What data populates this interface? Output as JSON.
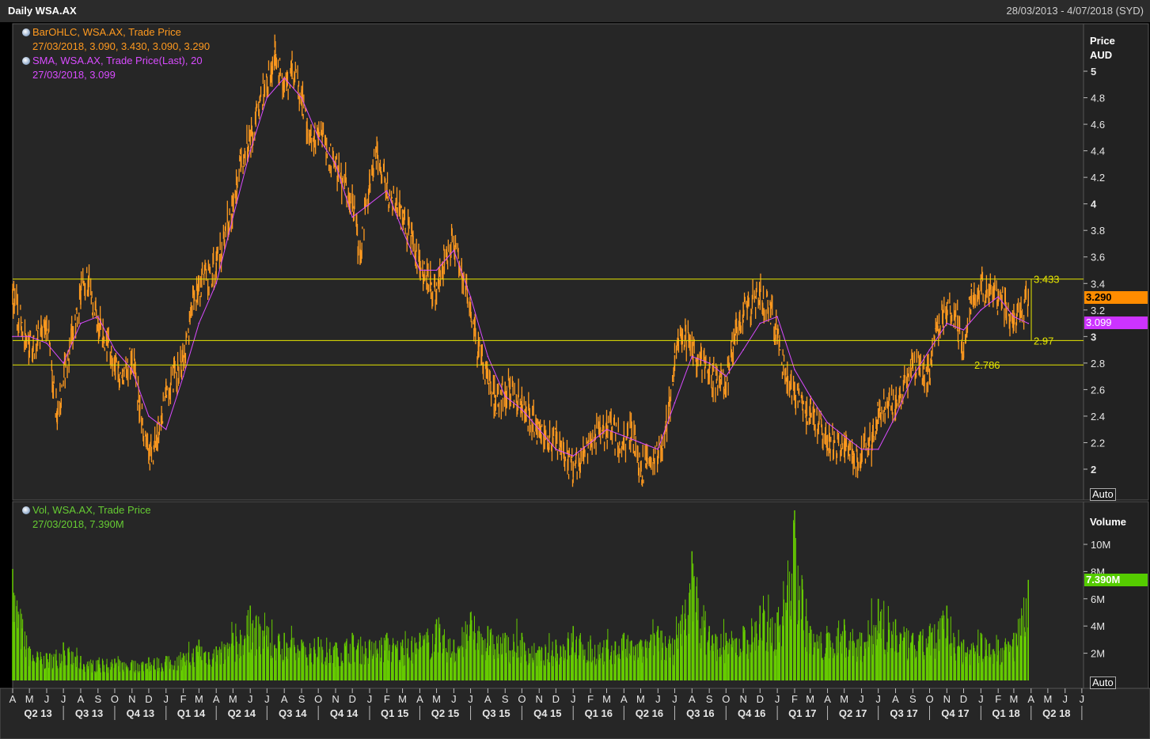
{
  "header": {
    "title": "Daily WSA.AX",
    "date_range": "28/03/2013 - 4/07/2018 (SYD)"
  },
  "colors": {
    "price": "#ff9a1f",
    "sma": "#d84bff",
    "volume": "#66cc00",
    "level_line": "#e6e600",
    "grid": "#3a3a3a",
    "background": "#000000"
  },
  "price_panel": {
    "legend": [
      {
        "line1": "BarOHLC, WSA.AX, Trade Price",
        "line2": "27/03/2018, 3.090, 3.430, 3.090, 3.290",
        "color": "orange"
      },
      {
        "line1": "SMA, WSA.AX, Trade Price(Last),  20",
        "line2": "27/03/2018, 3.099",
        "color": "purple"
      }
    ],
    "axis_title_1": "Price",
    "axis_title_2": "AUD",
    "auto_label": "Auto",
    "last_price_badge": "3.290",
    "sma_badge": "3.099"
  },
  "volume_panel": {
    "legend": {
      "line1": "Vol, WSA.AX, Trade Price",
      "line2": "27/03/2018, 7.390M"
    },
    "axis_title": "Volume",
    "auto_label": "Auto",
    "last_volume_badge": "7.390M"
  },
  "chart_data": [
    {
      "type": "line",
      "title": "Daily WSA.AX",
      "ylabel": "Price AUD",
      "y_axis_side": "right",
      "ylim": [
        1.85,
        5.25
      ],
      "y_ticks": [
        "2",
        "2.2",
        "2.4",
        "2.6",
        "2.8",
        "3",
        "3.2",
        "3.4",
        "3.6",
        "3.8",
        "4",
        "4.2",
        "4.4",
        "4.6",
        "4.8",
        "5"
      ],
      "grid": false,
      "x_range": [
        "2013-04-01",
        "2018-07-04"
      ],
      "x_month_ticks": [
        "A",
        "M",
        "J",
        "J",
        "A",
        "S",
        "O",
        "N",
        "D",
        "J",
        "F",
        "M",
        "A",
        "M",
        "J",
        "J",
        "A",
        "S",
        "O",
        "N",
        "D",
        "J",
        "F",
        "M",
        "A",
        "M",
        "J",
        "J",
        "A",
        "S",
        "O",
        "N",
        "D",
        "J",
        "F",
        "M",
        "A",
        "M",
        "J",
        "J",
        "A",
        "S",
        "O",
        "N",
        "D",
        "J",
        "F",
        "M",
        "A",
        "M",
        "J",
        "J",
        "A",
        "S",
        "O",
        "N",
        "D",
        "J",
        "F",
        "M",
        "A",
        "M",
        "J",
        "J"
      ],
      "x_quarter_ticks": [
        "Q2 13",
        "Q3 13",
        "Q4 13",
        "Q1 14",
        "Q2 14",
        "Q3 14",
        "Q4 14",
        "Q1 15",
        "Q2 15",
        "Q3 15",
        "Q4 15",
        "Q1 16",
        "Q2 16",
        "Q3 16",
        "Q4 16",
        "Q1 17",
        "Q2 17",
        "Q3 17",
        "Q4 17",
        "Q1 18",
        "Q2 18"
      ],
      "series": [
        {
          "name": "BarOHLC, WSA.AX, Trade Price",
          "style": "ohlc-bars",
          "x": [
            "2013-04-01",
            "2013-05-01",
            "2013-06-01",
            "2013-06-20",
            "2013-07-15",
            "2013-08-01",
            "2013-08-15",
            "2013-09-01",
            "2013-10-01",
            "2013-10-15",
            "2013-11-01",
            "2013-11-15",
            "2013-12-01",
            "2013-12-15",
            "2014-01-01",
            "2014-02-01",
            "2014-02-15",
            "2014-03-01",
            "2014-04-01",
            "2014-05-01",
            "2014-05-15",
            "2014-06-01",
            "2014-07-01",
            "2014-07-15",
            "2014-08-01",
            "2014-08-15",
            "2014-09-01",
            "2014-09-15",
            "2014-10-01",
            "2014-11-01",
            "2014-12-01",
            "2014-12-15",
            "2015-01-01",
            "2015-01-15",
            "2015-02-01",
            "2015-03-01",
            "2015-03-20",
            "2015-04-01",
            "2015-04-20",
            "2015-05-01",
            "2015-05-15",
            "2015-06-01",
            "2015-06-15",
            "2015-07-01",
            "2015-07-15",
            "2015-08-01",
            "2015-08-15",
            "2015-09-01",
            "2015-10-01",
            "2015-10-15",
            "2015-11-01",
            "2015-12-01",
            "2016-01-01",
            "2016-01-15",
            "2016-02-01",
            "2016-03-01",
            "2016-04-01",
            "2016-04-15",
            "2016-05-01",
            "2016-06-01",
            "2016-06-20",
            "2016-07-01",
            "2016-07-15",
            "2016-08-01",
            "2016-09-01",
            "2016-10-01",
            "2016-10-15",
            "2016-11-01",
            "2016-12-01",
            "2016-12-20",
            "2017-01-01",
            "2017-01-15",
            "2017-02-01",
            "2017-03-01",
            "2017-04-01",
            "2017-05-01",
            "2017-05-15",
            "2017-06-01",
            "2017-06-20",
            "2017-07-01",
            "2017-08-01",
            "2017-09-01",
            "2017-10-01",
            "2017-10-15",
            "2017-11-01",
            "2017-11-20",
            "2017-12-01",
            "2017-12-15",
            "2018-01-01",
            "2018-01-15",
            "2018-02-01",
            "2018-02-15",
            "2018-03-01",
            "2018-03-27"
          ],
          "values": [
            3.3,
            2.9,
            3.1,
            2.4,
            3.0,
            3.3,
            3.4,
            3.1,
            2.8,
            2.7,
            2.85,
            2.5,
            2.1,
            2.2,
            2.6,
            2.8,
            3.2,
            3.4,
            3.5,
            4.0,
            4.3,
            4.5,
            4.9,
            5.1,
            4.9,
            5.0,
            4.8,
            4.5,
            4.5,
            4.3,
            4.0,
            3.6,
            4.2,
            4.4,
            4.1,
            3.9,
            3.7,
            3.5,
            3.4,
            3.3,
            3.6,
            3.7,
            3.5,
            3.2,
            2.9,
            2.7,
            2.5,
            2.6,
            2.5,
            2.4,
            2.3,
            2.2,
            2.0,
            2.1,
            2.2,
            2.3,
            2.2,
            2.3,
            2.0,
            2.1,
            2.4,
            2.8,
            3.0,
            2.9,
            2.7,
            2.6,
            3.0,
            3.2,
            3.3,
            3.2,
            3.0,
            2.7,
            2.6,
            2.4,
            2.2,
            2.15,
            2.1,
            2.1,
            2.2,
            2.4,
            2.5,
            2.8,
            2.7,
            3.1,
            3.2,
            3.1,
            2.9,
            3.3,
            3.4,
            3.3,
            3.3,
            3.2,
            3.1,
            3.29
          ]
        },
        {
          "name": "SMA, WSA.AX, Trade Price(Last),  20",
          "style": "line",
          "x": [
            "2013-04-01",
            "2013-05-01",
            "2013-06-01",
            "2013-07-01",
            "2013-08-01",
            "2013-09-01",
            "2013-10-01",
            "2013-11-01",
            "2013-12-01",
            "2014-01-01",
            "2014-02-01",
            "2014-03-01",
            "2014-04-01",
            "2014-05-01",
            "2014-06-01",
            "2014-07-01",
            "2014-08-01",
            "2014-09-01",
            "2014-10-01",
            "2014-11-01",
            "2014-12-01",
            "2015-01-01",
            "2015-02-01",
            "2015-03-01",
            "2015-04-01",
            "2015-05-01",
            "2015-06-01",
            "2015-07-01",
            "2015-08-01",
            "2015-09-01",
            "2015-10-01",
            "2015-11-01",
            "2015-12-01",
            "2016-01-01",
            "2016-02-01",
            "2016-03-01",
            "2016-04-01",
            "2016-05-01",
            "2016-06-01",
            "2016-07-01",
            "2016-08-01",
            "2016-09-01",
            "2016-10-01",
            "2016-11-01",
            "2016-12-01",
            "2017-01-01",
            "2017-02-01",
            "2017-03-01",
            "2017-04-01",
            "2017-05-01",
            "2017-06-01",
            "2017-07-01",
            "2017-08-01",
            "2017-09-01",
            "2017-10-01",
            "2017-11-01",
            "2017-12-01",
            "2018-01-01",
            "2018-02-01",
            "2018-03-01",
            "2018-03-27"
          ],
          "values": [
            3.0,
            3.0,
            2.95,
            2.8,
            3.1,
            3.15,
            2.9,
            2.75,
            2.4,
            2.3,
            2.7,
            3.1,
            3.4,
            3.9,
            4.4,
            4.8,
            4.95,
            4.8,
            4.5,
            4.3,
            3.9,
            4.0,
            4.1,
            3.8,
            3.5,
            3.5,
            3.65,
            3.3,
            2.85,
            2.55,
            2.45,
            2.3,
            2.15,
            2.1,
            2.2,
            2.3,
            2.25,
            2.2,
            2.15,
            2.5,
            2.85,
            2.8,
            2.7,
            2.9,
            3.1,
            3.15,
            2.75,
            2.55,
            2.35,
            2.25,
            2.15,
            2.15,
            2.4,
            2.7,
            2.9,
            3.1,
            3.05,
            3.2,
            3.3,
            3.15,
            3.099
          ]
        }
      ],
      "horizontal_levels": [
        3.433,
        2.97,
        2.786
      ],
      "level_labels": [
        "3.433",
        "2.97",
        "2.786"
      ],
      "last_values": {
        "close": 3.29,
        "sma": 3.099
      }
    },
    {
      "type": "bar",
      "title": "Vol, WSA.AX, Trade Price",
      "ylabel": "Volume",
      "y_axis_side": "right",
      "ylim": [
        0,
        12.8
      ],
      "y_unit": "M",
      "y_ticks": [
        "2M",
        "4M",
        "6M",
        "8M",
        "10M"
      ],
      "x_range": [
        "2013-04-01",
        "2018-07-04"
      ],
      "series": [
        {
          "name": "Vol, WSA.AX, Trade Price",
          "x": [
            "2013-04-01",
            "2013-05-01",
            "2013-06-01",
            "2013-07-01",
            "2013-08-01",
            "2013-09-01",
            "2013-10-01",
            "2013-11-01",
            "2013-12-01",
            "2014-01-01",
            "2014-02-01",
            "2014-03-01",
            "2014-04-01",
            "2014-05-01",
            "2014-06-01",
            "2014-07-01",
            "2014-08-01",
            "2014-09-01",
            "2014-10-01",
            "2014-11-01",
            "2014-12-01",
            "2015-01-01",
            "2015-02-01",
            "2015-03-01",
            "2015-04-01",
            "2015-05-01",
            "2015-06-01",
            "2015-07-01",
            "2015-08-01",
            "2015-09-01",
            "2015-10-01",
            "2015-11-01",
            "2015-12-01",
            "2016-01-01",
            "2016-02-01",
            "2016-03-01",
            "2016-04-01",
            "2016-05-01",
            "2016-06-01",
            "2016-07-01",
            "2016-08-01",
            "2016-09-01",
            "2016-10-01",
            "2016-11-01",
            "2016-12-01",
            "2017-01-01",
            "2017-02-01",
            "2017-03-01",
            "2017-04-01",
            "2017-05-01",
            "2017-06-01",
            "2017-07-01",
            "2017-08-01",
            "2017-09-01",
            "2017-10-01",
            "2017-11-01",
            "2017-12-01",
            "2018-01-01",
            "2018-02-01",
            "2018-03-01",
            "2018-03-27"
          ],
          "values": [
            8.2,
            2.5,
            2.0,
            2.8,
            1.8,
            1.5,
            1.6,
            1.5,
            1.7,
            1.8,
            2.0,
            3.0,
            2.5,
            3.5,
            5.5,
            4.0,
            3.5,
            3.0,
            3.2,
            2.8,
            3.5,
            3.0,
            3.5,
            3.0,
            3.5,
            4.5,
            3.0,
            5.0,
            4.0,
            3.5,
            3.5,
            2.5,
            3.0,
            4.0,
            3.0,
            3.0,
            3.5,
            3.0,
            4.0,
            3.0,
            9.5,
            4.0,
            3.5,
            4.0,
            5.5,
            5.0,
            12.5,
            4.0,
            3.5,
            4.5,
            3.5,
            6.0,
            4.5,
            3.5,
            4.0,
            5.5,
            3.0,
            3.5,
            3.0,
            3.5,
            7.39
          ]
        }
      ],
      "last_value": 7.39
    }
  ]
}
